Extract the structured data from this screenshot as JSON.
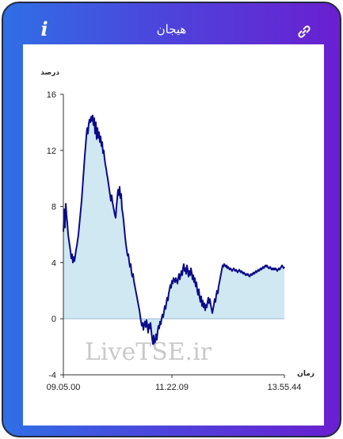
{
  "header": {
    "title": "هیجان",
    "info_label": "i",
    "info_icon": "info-icon",
    "link_icon": "link-icon"
  },
  "watermark": "LiveTSE.ir",
  "colors": {
    "line": "#0a0a8a",
    "fill": "#cfe8f2",
    "zero_line": "#9fbcd0"
  },
  "chart_data": {
    "type": "area",
    "ylabel": "درصد",
    "xlabel": "زمان",
    "ylim": [
      -4,
      16
    ],
    "yticks": [
      -4,
      0,
      4,
      8,
      12,
      16
    ],
    "xtick_labels": [
      "09.05.00",
      "11.22.09",
      "13.55.44"
    ],
    "xtick_positions": [
      0,
      137,
      279
    ],
    "x_range": [
      0,
      279
    ],
    "series": [
      {
        "points": [
          [
            0,
            6.2
          ],
          [
            1,
            7.8
          ],
          [
            2,
            6.5
          ],
          [
            3,
            8.2
          ],
          [
            4,
            7.4
          ],
          [
            5,
            6.8
          ],
          [
            6,
            6.0
          ],
          [
            7,
            5.6
          ],
          [
            8,
            5.2
          ],
          [
            9,
            4.8
          ],
          [
            10,
            4.3
          ],
          [
            11,
            4.6
          ],
          [
            12,
            4.0
          ],
          [
            13,
            4.4
          ],
          [
            14,
            4.1
          ],
          [
            15,
            4.5
          ],
          [
            16,
            4.9
          ],
          [
            17,
            5.2
          ],
          [
            18,
            5.6
          ],
          [
            19,
            6.0
          ],
          [
            20,
            6.6
          ],
          [
            21,
            7.2
          ],
          [
            22,
            7.8
          ],
          [
            23,
            8.4
          ],
          [
            24,
            9.2
          ],
          [
            25,
            10.0
          ],
          [
            26,
            10.8
          ],
          [
            27,
            11.6
          ],
          [
            28,
            12.3
          ],
          [
            29,
            13.0
          ],
          [
            30,
            13.6
          ],
          [
            31,
            13.2
          ],
          [
            32,
            13.9
          ],
          [
            33,
            14.2
          ],
          [
            34,
            14.0
          ],
          [
            35,
            14.4
          ],
          [
            36,
            14.1
          ],
          [
            37,
            14.5
          ],
          [
            38,
            13.8
          ],
          [
            39,
            14.3
          ],
          [
            40,
            13.2
          ],
          [
            41,
            14.0
          ],
          [
            42,
            12.8
          ],
          [
            43,
            13.6
          ],
          [
            44,
            12.9
          ],
          [
            45,
            13.3
          ],
          [
            46,
            12.6
          ],
          [
            47,
            13.0
          ],
          [
            48,
            12.3
          ],
          [
            49,
            12.6
          ],
          [
            50,
            11.8
          ],
          [
            51,
            12.0
          ],
          [
            52,
            11.4
          ],
          [
            53,
            11.0
          ],
          [
            54,
            10.7
          ],
          [
            55,
            10.3
          ],
          [
            56,
            10.0
          ],
          [
            57,
            9.6
          ],
          [
            58,
            9.2
          ],
          [
            59,
            8.8
          ],
          [
            60,
            8.4
          ],
          [
            61,
            8.8
          ],
          [
            62,
            8.3
          ],
          [
            63,
            8.0
          ],
          [
            64,
            7.7
          ],
          [
            65,
            7.4
          ],
          [
            66,
            7.2
          ],
          [
            67,
            8.0
          ],
          [
            68,
            8.6
          ],
          [
            69,
            9.2
          ],
          [
            70,
            8.8
          ],
          [
            71,
            9.4
          ],
          [
            72,
            8.6
          ],
          [
            73,
            8.9
          ],
          [
            74,
            7.8
          ],
          [
            75,
            7.5
          ],
          [
            76,
            7.0
          ],
          [
            77,
            6.4
          ],
          [
            78,
            5.8
          ],
          [
            79,
            5.3
          ],
          [
            80,
            4.9
          ],
          [
            81,
            4.5
          ],
          [
            82,
            4.6
          ],
          [
            83,
            4.1
          ],
          [
            84,
            3.7
          ],
          [
            85,
            3.9
          ],
          [
            86,
            3.3
          ],
          [
            87,
            3.0
          ],
          [
            88,
            3.2
          ],
          [
            89,
            2.7
          ],
          [
            90,
            2.4
          ],
          [
            91,
            2.1
          ],
          [
            92,
            1.8
          ],
          [
            93,
            1.5
          ],
          [
            94,
            1.2
          ],
          [
            95,
            0.9
          ],
          [
            96,
            0.6
          ],
          [
            97,
            0.2
          ],
          [
            98,
            -0.2
          ],
          [
            99,
            -0.5
          ],
          [
            100,
            -0.3
          ],
          [
            101,
            -0.8
          ],
          [
            102,
            -0.4
          ],
          [
            103,
            -0.2
          ],
          [
            104,
            -0.6
          ],
          [
            105,
            -0.1
          ],
          [
            106,
            -0.5
          ],
          [
            107,
            -1.0
          ],
          [
            108,
            -0.4
          ],
          [
            109,
            -0.7
          ],
          [
            110,
            -0.3
          ],
          [
            111,
            -0.9
          ],
          [
            112,
            -1.4
          ],
          [
            113,
            -1.8
          ],
          [
            114,
            -1.2
          ],
          [
            115,
            -2.0
          ],
          [
            116,
            -1.6
          ],
          [
            117,
            -1.1
          ],
          [
            118,
            -1.5
          ],
          [
            119,
            -0.9
          ],
          [
            120,
            -0.5
          ],
          [
            121,
            -0.7
          ],
          [
            122,
            -0.2
          ],
          [
            123,
            -0.4
          ],
          [
            124,
            0.0
          ],
          [
            125,
            0.3
          ],
          [
            126,
            0.1
          ],
          [
            127,
            0.5
          ],
          [
            128,
            0.9
          ],
          [
            129,
            0.7
          ],
          [
            130,
            1.1
          ],
          [
            131,
            1.5
          ],
          [
            132,
            1.3
          ],
          [
            133,
            1.8
          ],
          [
            134,
            2.1
          ],
          [
            135,
            2.4
          ],
          [
            136,
            2.2
          ],
          [
            137,
            2.7
          ],
          [
            138,
            2.5
          ],
          [
            139,
            2.9
          ],
          [
            140,
            2.8
          ],
          [
            141,
            2.6
          ],
          [
            142,
            2.9
          ],
          [
            143,
            2.7
          ],
          [
            144,
            2.5
          ],
          [
            145,
            2.9
          ],
          [
            146,
            3.2
          ],
          [
            147,
            2.8
          ],
          [
            148,
            3.1
          ],
          [
            149,
            3.4
          ],
          [
            150,
            3.1
          ],
          [
            151,
            3.6
          ],
          [
            152,
            3.9
          ],
          [
            153,
            3.4
          ],
          [
            154,
            3.6
          ],
          [
            155,
            3.2
          ],
          [
            156,
            3.8
          ],
          [
            157,
            3.5
          ],
          [
            158,
            3.0
          ],
          [
            159,
            3.4
          ],
          [
            160,
            3.1
          ],
          [
            161,
            3.6
          ],
          [
            162,
            3.3
          ],
          [
            163,
            2.8
          ],
          [
            164,
            3.1
          ],
          [
            165,
            2.6
          ],
          [
            166,
            2.9
          ],
          [
            167,
            2.3
          ],
          [
            168,
            2.6
          ],
          [
            169,
            2.0
          ],
          [
            170,
            1.7
          ],
          [
            171,
            2.1
          ],
          [
            172,
            1.5
          ],
          [
            173,
            1.2
          ],
          [
            174,
            1.6
          ],
          [
            175,
            0.9
          ],
          [
            176,
            1.3
          ],
          [
            177,
            0.8
          ],
          [
            178,
            1.1
          ],
          [
            179,
            0.6
          ],
          [
            180,
            1.0
          ],
          [
            181,
            0.8
          ],
          [
            182,
            1.2
          ],
          [
            183,
            1.5
          ],
          [
            184,
            1.1
          ],
          [
            185,
            1.4
          ],
          [
            186,
            1.0
          ],
          [
            187,
            0.7
          ],
          [
            188,
            0.4
          ],
          [
            189,
            0.7
          ],
          [
            190,
            1.0
          ],
          [
            191,
            1.4
          ],
          [
            192,
            1.2
          ],
          [
            193,
            1.7
          ],
          [
            194,
            2.0
          ],
          [
            195,
            1.8
          ],
          [
            196,
            2.3
          ],
          [
            197,
            2.6
          ],
          [
            198,
            2.9
          ],
          [
            199,
            3.2
          ],
          [
            200,
            3.5
          ],
          [
            201,
            3.8
          ],
          [
            202,
            3.7
          ],
          [
            203,
            3.9
          ],
          [
            204,
            3.8
          ],
          [
            205,
            3.7
          ],
          [
            206,
            3.8
          ],
          [
            207,
            3.6
          ],
          [
            208,
            3.7
          ],
          [
            209,
            3.6
          ],
          [
            210,
            3.5
          ],
          [
            211,
            3.6
          ],
          [
            212,
            3.5
          ],
          [
            213,
            3.4
          ],
          [
            214,
            3.5
          ],
          [
            215,
            3.6
          ],
          [
            216,
            3.5
          ],
          [
            217,
            3.4
          ],
          [
            218,
            3.5
          ],
          [
            219,
            3.4
          ],
          [
            220,
            3.3
          ],
          [
            221,
            3.4
          ],
          [
            222,
            3.5
          ],
          [
            223,
            3.4
          ],
          [
            224,
            3.3
          ],
          [
            225,
            3.4
          ],
          [
            226,
            3.3
          ],
          [
            227,
            3.2
          ],
          [
            228,
            3.3
          ],
          [
            229,
            3.2
          ],
          [
            230,
            3.1
          ],
          [
            231,
            3.2
          ],
          [
            232,
            3.1
          ],
          [
            233,
            3.2
          ],
          [
            234,
            3.1
          ],
          [
            235,
            3.0
          ],
          [
            236,
            3.1
          ],
          [
            237,
            3.2
          ],
          [
            238,
            3.1
          ],
          [
            239,
            3.2
          ],
          [
            240,
            3.3
          ],
          [
            241,
            3.2
          ],
          [
            242,
            3.3
          ],
          [
            243,
            3.4
          ],
          [
            244,
            3.3
          ],
          [
            245,
            3.4
          ],
          [
            246,
            3.5
          ],
          [
            247,
            3.4
          ],
          [
            248,
            3.5
          ],
          [
            249,
            3.6
          ],
          [
            250,
            3.5
          ],
          [
            251,
            3.6
          ],
          [
            252,
            3.7
          ],
          [
            253,
            3.6
          ],
          [
            254,
            3.7
          ],
          [
            255,
            3.8
          ],
          [
            256,
            3.7
          ],
          [
            257,
            3.8
          ],
          [
            258,
            3.7
          ],
          [
            259,
            3.6
          ],
          [
            260,
            3.6
          ],
          [
            261,
            3.7
          ],
          [
            262,
            3.6
          ],
          [
            263,
            3.5
          ],
          [
            264,
            3.6
          ],
          [
            265,
            3.5
          ],
          [
            266,
            3.6
          ],
          [
            267,
            3.5
          ],
          [
            268,
            3.6
          ],
          [
            269,
            3.5
          ],
          [
            270,
            3.4
          ],
          [
            271,
            3.5
          ],
          [
            272,
            3.6
          ],
          [
            273,
            3.5
          ],
          [
            274,
            3.6
          ],
          [
            275,
            3.7
          ],
          [
            276,
            3.8
          ],
          [
            277,
            3.7
          ],
          [
            278,
            3.6
          ],
          [
            279,
            3.7
          ]
        ]
      }
    ]
  }
}
